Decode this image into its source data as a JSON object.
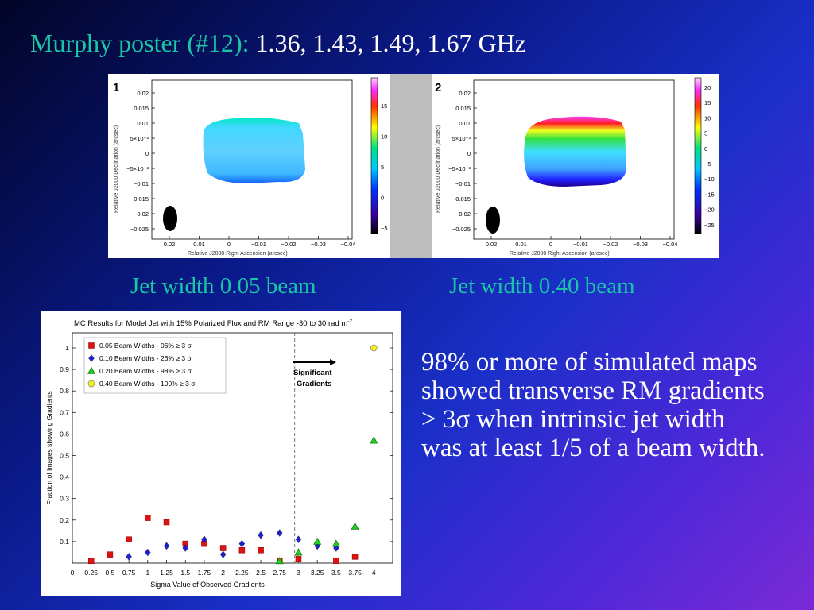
{
  "slide": {
    "title_name": "Murphy poster (#12):",
    "title_freq": "1.36, 1.43, 1.49, 1.67 GHz",
    "caption_left": "Jet width 0.05 beam",
    "caption_right": "Jet width 0.40 beam",
    "note": "98% or more of simulated maps showed transverse RM gradients > 3σ when intrinsic jet width was at least 1/5 of a beam width."
  },
  "maps": {
    "left": {
      "panel_label": "1",
      "y_ticks": [
        "0.02",
        "0.015",
        "0.01",
        "5×10⁻³",
        "0",
        "−5×10⁻³",
        "−0.01",
        "−0.015",
        "−0.02",
        "−0.025"
      ],
      "x_ticks": [
        "0.02",
        "0.01",
        "0",
        "−0.01",
        "−0.02",
        "−0.03",
        "−0.04"
      ],
      "colorbar_ticks": [
        "15",
        "10",
        "5",
        "0",
        "−5"
      ],
      "ylabel": "Relative J2000 Declination (arcsec)",
      "xlabel": "Relative J2000 Right Ascension (arcsec)"
    },
    "right": {
      "panel_label": "2",
      "y_ticks": [
        "0.02",
        "0.015",
        "0.01",
        "5×10⁻³",
        "0",
        "−5×10⁻³",
        "−0.01",
        "−0.015",
        "−0.02",
        "−0.025"
      ],
      "x_ticks": [
        "0.02",
        "0.01",
        "0",
        "−0.01",
        "−0.02",
        "−0.03",
        "−0.04"
      ],
      "colorbar_ticks": [
        "20",
        "15",
        "10",
        "5",
        "0",
        "−5",
        "−10",
        "−15",
        "−20",
        "−25"
      ],
      "ylabel": "Relative J2000 Declination (arcsec)",
      "xlabel": "Relative J2000 Right Ascension (arcsec)"
    }
  },
  "chart_data": {
    "type": "scatter",
    "title": "MC Results for Model Jet with 15% Polarized Flux and RM Range -30 to 30 rad m",
    "title_sup": "-2",
    "xlabel": "Sigma Value of Observed Gradients",
    "ylabel": "Fraction of Images showing Gradients",
    "xlim": [
      0,
      4.25
    ],
    "ylim": [
      0,
      1.07
    ],
    "x_ticks": [
      "0",
      "0.25",
      "0.5",
      "0.75",
      "1",
      "1.25",
      "1.5",
      "1.75",
      "2",
      "2.25",
      "2.5",
      "2.75",
      "3",
      "3.25",
      "3.5",
      "3.75",
      "4"
    ],
    "y_ticks": [
      "0.1",
      "0.2",
      "0.3",
      "0.4",
      "0.5",
      "0.6",
      "0.7",
      "0.8",
      "0.9",
      "1"
    ],
    "threshold_x": 2.95,
    "annotation": [
      "Significant",
      "Gradients"
    ],
    "legend_position": "top-left",
    "series": [
      {
        "name": "0.05 Beam Widths - 06% ≥ 3 σ",
        "marker": "square",
        "color": "#dd1111",
        "x": [
          0.25,
          0.5,
          0.75,
          1,
          1.25,
          1.5,
          1.75,
          2,
          2.25,
          2.5,
          2.75,
          3,
          3.5,
          3.75
        ],
        "y": [
          0.01,
          0.04,
          0.11,
          0.21,
          0.19,
          0.09,
          0.09,
          0.07,
          0.06,
          0.06,
          0.01,
          0.02,
          0.01,
          0.03
        ]
      },
      {
        "name": "0.10 Beam Widths - 26% ≥ 3 σ",
        "marker": "diamond",
        "color": "#2222cc",
        "x": [
          0.75,
          1,
          1.25,
          1.5,
          1.75,
          2,
          2.25,
          2.5,
          2.75,
          3,
          3.25,
          3.5
        ],
        "y": [
          0.03,
          0.05,
          0.08,
          0.07,
          0.11,
          0.04,
          0.09,
          0.13,
          0.14,
          0.11,
          0.08,
          0.07
        ]
      },
      {
        "name": "0.20 Beam Widths - 98% ≥ 3 σ",
        "marker": "triangle",
        "color": "#22cc22",
        "x": [
          2.75,
          3,
          3.25,
          3.5,
          3.75,
          4
        ],
        "y": [
          0.01,
          0.05,
          0.1,
          0.09,
          0.17,
          0.57
        ]
      },
      {
        "name": "0.40 Beam Widths - 100% ≥ 3 σ",
        "marker": "circle",
        "color": "#f2ee22",
        "x": [
          4
        ],
        "y": [
          1.0
        ]
      }
    ]
  }
}
